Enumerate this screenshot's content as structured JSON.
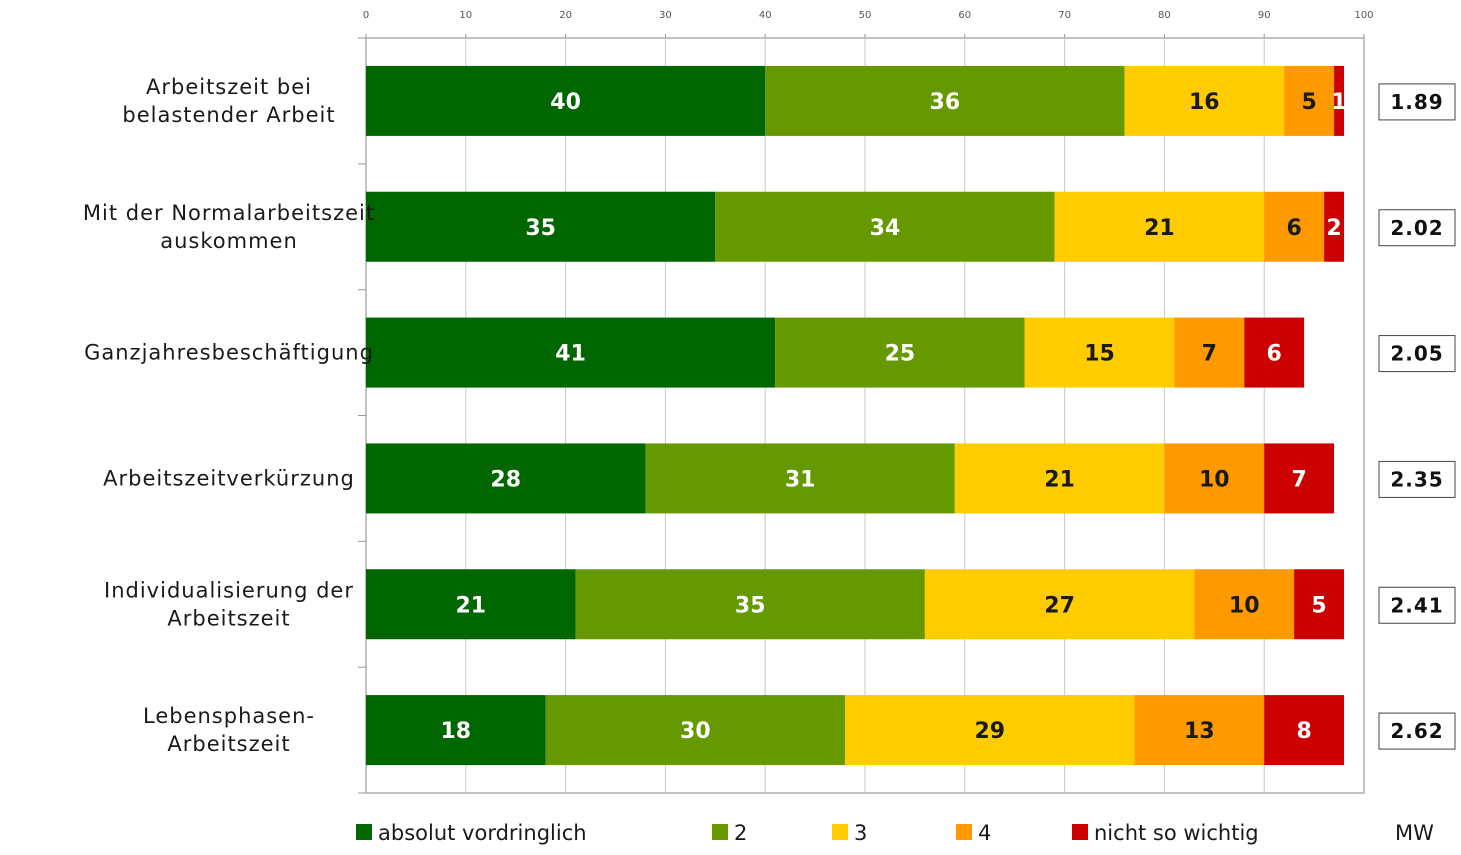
{
  "chart_data": {
    "type": "bar",
    "orientation": "horizontal",
    "stacked": true,
    "xlim": [
      0,
      100
    ],
    "x_ticks": [
      "0",
      "10",
      "20",
      "30",
      "40",
      "50",
      "60",
      "70",
      "80",
      "90",
      "100"
    ],
    "grid": true,
    "legend_position": "bottom",
    "categories": [
      [
        "Arbeitszeit bei",
        "belastender Arbeit"
      ],
      [
        "Mit der Normalarbeitszeit",
        "auskommen"
      ],
      [
        "Ganzjahresbeschäftigung"
      ],
      [
        "Arbeitszeitverkürzung"
      ],
      [
        "Individualisierung der",
        "Arbeitszeit"
      ],
      [
        "Lebensphasen-",
        "Arbeitszeit"
      ]
    ],
    "series": [
      {
        "name": "absolut vordringlich",
        "color": "#006600",
        "label_color": "#ffffff",
        "values": [
          40,
          35,
          41,
          28,
          21,
          18
        ]
      },
      {
        "name": "2",
        "color": "#669900",
        "label_color": "#ffffff",
        "values": [
          36,
          34,
          25,
          31,
          35,
          30
        ]
      },
      {
        "name": "3",
        "color": "#ffcc00",
        "label_color": "#1a1a1a",
        "values": [
          16,
          21,
          15,
          21,
          27,
          29
        ]
      },
      {
        "name": "4",
        "color": "#ff9900",
        "label_color": "#1a1a1a",
        "values": [
          5,
          6,
          7,
          10,
          10,
          13
        ]
      },
      {
        "name": "nicht so wichtig",
        "color": "#cc0000",
        "label_color": "#ffffff",
        "values": [
          1,
          2,
          6,
          7,
          5,
          8
        ]
      }
    ],
    "mw_label": "MW",
    "mw_values": [
      "1.89",
      "2.02",
      "2.05",
      "2.35",
      "2.41",
      "2.62"
    ]
  }
}
